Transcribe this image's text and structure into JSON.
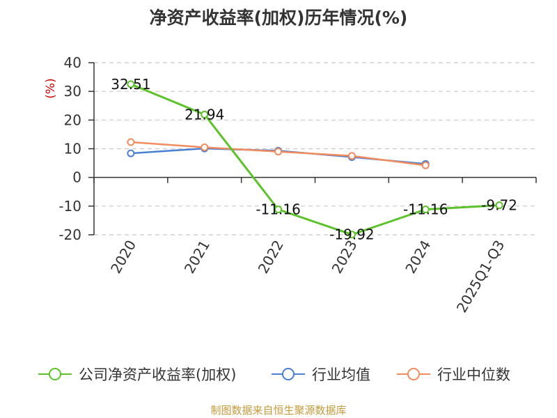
{
  "chart_data": {
    "type": "line",
    "title": "净资产收益率(加权)历年情况(%)",
    "ylabel": "(%)",
    "xlabel": "",
    "categories": [
      "2020",
      "2021",
      "2022",
      "2023",
      "2024",
      "2025Q1-Q3"
    ],
    "ylim": [
      -20,
      40
    ],
    "yticks": [
      40,
      30,
      20,
      10,
      0,
      -10,
      -20
    ],
    "grid": true,
    "legend_position": "bottom",
    "series": [
      {
        "name": "公司净资产收益率(加权)",
        "color": "#5cc22a",
        "values": [
          32.51,
          21.94,
          -11.16,
          -19.92,
          -11.16,
          -9.72
        ],
        "labels": [
          "32.51",
          "21.94",
          "-11.16",
          "-19.92",
          "-11.16",
          "-9.72"
        ]
      },
      {
        "name": "行业均值",
        "color": "#4a7fd6",
        "values": [
          8.4,
          10.1,
          9.3,
          7.1,
          4.7,
          null
        ]
      },
      {
        "name": "行业中位数",
        "color": "#f28c5c",
        "values": [
          12.3,
          10.5,
          9.0,
          7.5,
          4.2,
          null
        ]
      }
    ]
  },
  "source_note": "制图数据来自恒生聚源数据库"
}
